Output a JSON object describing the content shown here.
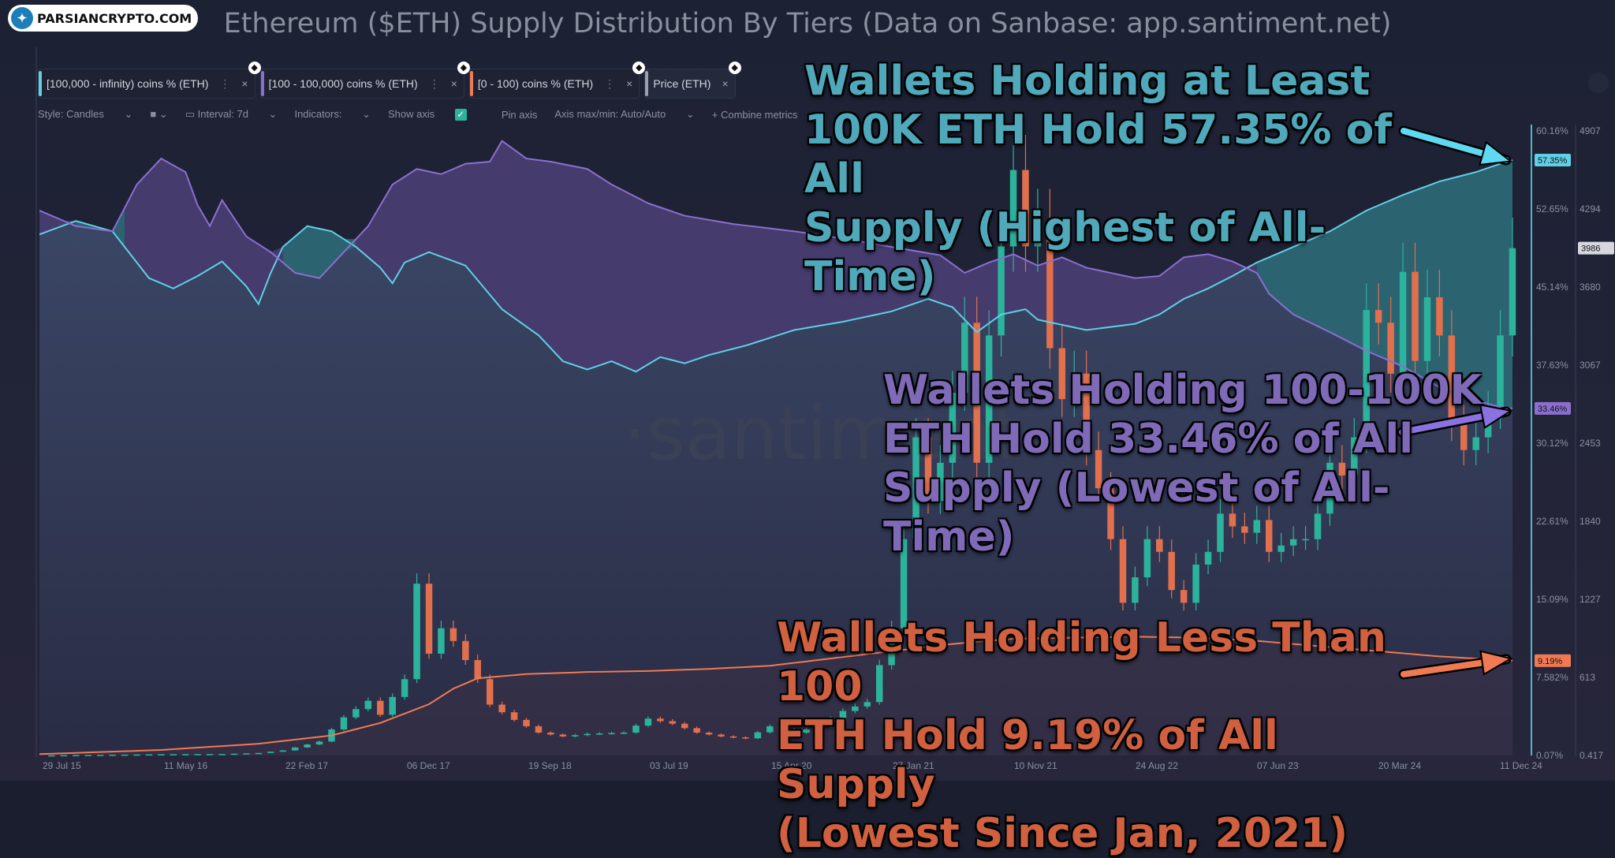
{
  "brand": {
    "logo_text": "PARSIANCRYPTO.COM",
    "logo_glyph": "✦"
  },
  "title": "Ethereum ($ETH) Supply Distribution By Tiers (Data on Sanbase: app.santiment.net)",
  "metrics": [
    {
      "label": "[100,000 - infinity) coins % (ETH)",
      "color": "#5fd0e6"
    },
    {
      "label": "[100 - 100,000) coins % (ETH)",
      "color": "#8a6fd1"
    },
    {
      "label": "[0 - 100) coins % (ETH)",
      "color": "#f07a54"
    },
    {
      "label": "Price (ETH)",
      "color": "#9aa0b2"
    }
  ],
  "metric_menu": "⋮",
  "metric_close": "×",
  "toolbar": {
    "style": "Style: Candles",
    "interval": "Interval: 7d",
    "indicators": "Indicators:",
    "show_axis": "Show axis",
    "pin_axis": "Pin axis",
    "axis_maxmin": "Axis max/min: Auto/Auto",
    "combine": "+ Combine metrics"
  },
  "watermark": "·santiment",
  "side_watermark": "santiment",
  "annotations": {
    "a1": [
      "Wallets Holding at Least",
      "100K ETH Hold 57.35% of All",
      "Supply (Highest of All-Time)"
    ],
    "a2": [
      "Wallets Holding 100-100K",
      "ETH Hold 33.46% of All",
      "Supply (Lowest of All-Time)"
    ],
    "a3": [
      "Wallets Holding Less Than 100",
      "ETH Hold 9.19% of All Supply",
      "(Lowest Since Jan, 2021)"
    ]
  },
  "chart_data": {
    "type": "line",
    "x_ticks": [
      "29 Jul 15",
      "11 May 16",
      "22 Feb 17",
      "06 Dec 17",
      "19 Sep 18",
      "03 Jul 19",
      "15 Apr 20",
      "27 Jan 21",
      "10 Nov 21",
      "24 Aug 22",
      "07 Jun 23",
      "20 Mar 24",
      "11 Dec 24"
    ],
    "y_left_ticks": [
      "60.16%",
      "52.65%",
      "45.14%",
      "37.63%",
      "30.12%",
      "22.61%",
      "15.09%",
      "7.582%",
      "0.07%"
    ],
    "y_left_range": [
      0.07,
      60.16
    ],
    "y_right_ticks": [
      "4907",
      "4294",
      "3680",
      "3067",
      "2453",
      "1840",
      "1227",
      "613",
      "0.417"
    ],
    "y_right_range": [
      0.417,
      4907
    ],
    "value_labels": [
      {
        "text": "57.35%",
        "color": "#5fd0e6"
      },
      {
        "text": "33.46%",
        "color": "#8a6fd1"
      },
      {
        "text": "9.19%",
        "color": "#f07a54"
      },
      {
        "text": "3986",
        "color": "#d6d8de"
      }
    ],
    "series": [
      {
        "name": "[100,000 - infinity) coins % (ETH)",
        "color": "#5fd0e6",
        "points": [
          [
            0,
            50.2
          ],
          [
            3,
            51.5
          ],
          [
            6,
            50.5
          ],
          [
            9,
            46.0
          ],
          [
            11,
            45.0
          ],
          [
            13,
            46.2
          ],
          [
            15,
            47.6
          ],
          [
            17,
            45.2
          ],
          [
            18,
            43.5
          ],
          [
            19,
            46.5
          ],
          [
            20,
            49.0
          ],
          [
            22,
            51.0
          ],
          [
            24,
            50.5
          ],
          [
            26,
            49.0
          ],
          [
            28,
            47.0
          ],
          [
            29,
            45.5
          ],
          [
            30,
            47.5
          ],
          [
            32,
            48.5
          ],
          [
            35,
            47.2
          ],
          [
            38,
            43.0
          ],
          [
            41,
            40.5
          ],
          [
            43,
            38.0
          ],
          [
            45,
            37.2
          ],
          [
            47,
            38.0
          ],
          [
            49,
            37.0
          ],
          [
            51,
            38.4
          ],
          [
            53,
            37.8
          ],
          [
            55,
            38.6
          ],
          [
            58,
            39.5
          ],
          [
            62,
            41.0
          ],
          [
            66,
            41.8
          ],
          [
            70,
            42.8
          ],
          [
            73,
            44.0
          ],
          [
            75,
            43.2
          ],
          [
            77,
            40.8
          ],
          [
            79,
            42.5
          ],
          [
            81,
            43.0
          ],
          [
            82,
            42.0
          ],
          [
            84,
            41.5
          ],
          [
            86,
            41.0
          ],
          [
            88,
            41.3
          ],
          [
            90,
            41.6
          ],
          [
            92,
            42.5
          ],
          [
            94,
            44.0
          ],
          [
            96,
            45.0
          ],
          [
            98,
            46.2
          ],
          [
            100,
            47.5
          ],
          [
            103,
            49.0
          ],
          [
            106,
            50.5
          ],
          [
            109,
            52.5
          ],
          [
            112,
            54.0
          ],
          [
            115,
            55.3
          ],
          [
            118,
            56.2
          ],
          [
            120,
            57.0
          ],
          [
            121,
            57.35
          ]
        ]
      },
      {
        "name": "[100 - 100,000) coins % (ETH)",
        "color": "#8a6fd1",
        "points": [
          [
            0,
            52.5
          ],
          [
            3,
            51.0
          ],
          [
            6,
            50.5
          ],
          [
            8,
            55.0
          ],
          [
            10,
            57.5
          ],
          [
            12,
            56.2
          ],
          [
            13,
            53.0
          ],
          [
            14,
            51.0
          ],
          [
            15,
            53.5
          ],
          [
            17,
            50.0
          ],
          [
            19,
            48.5
          ],
          [
            21,
            46.5
          ],
          [
            23,
            46.0
          ],
          [
            25,
            48.5
          ],
          [
            27,
            51.0
          ],
          [
            29,
            55.0
          ],
          [
            31,
            56.5
          ],
          [
            33,
            56.0
          ],
          [
            35,
            57.0
          ],
          [
            37,
            57.2
          ],
          [
            38,
            59.2
          ],
          [
            40,
            57.5
          ],
          [
            42,
            57.2
          ],
          [
            45,
            56.5
          ],
          [
            47,
            55.0
          ],
          [
            50,
            53.2
          ],
          [
            53,
            52.0
          ],
          [
            57,
            51.2
          ],
          [
            62,
            50.5
          ],
          [
            66,
            49.8
          ],
          [
            70,
            49.0
          ],
          [
            74,
            48.2
          ],
          [
            76,
            46.5
          ],
          [
            78,
            47.5
          ],
          [
            80,
            48.3
          ],
          [
            82,
            47.2
          ],
          [
            84,
            48.0
          ],
          [
            86,
            47.0
          ],
          [
            88,
            46.5
          ],
          [
            90,
            46.0
          ],
          [
            92,
            46.2
          ],
          [
            94,
            48.0
          ],
          [
            96,
            48.3
          ],
          [
            98,
            47.6
          ],
          [
            100,
            46.5
          ],
          [
            101,
            44.5
          ],
          [
            103,
            42.5
          ],
          [
            106,
            40.8
          ],
          [
            109,
            39.0
          ],
          [
            112,
            37.5
          ],
          [
            115,
            35.5
          ],
          [
            118,
            34.2
          ],
          [
            120,
            33.6
          ],
          [
            121,
            33.46
          ]
        ]
      },
      {
        "name": "[0 - 100) coins % (ETH)",
        "color": "#f07a54",
        "points": [
          [
            0,
            0.2
          ],
          [
            10,
            0.6
          ],
          [
            18,
            1.2
          ],
          [
            24,
            2.0
          ],
          [
            28,
            3.2
          ],
          [
            32,
            5.0
          ],
          [
            34,
            6.5
          ],
          [
            36,
            7.5
          ],
          [
            40,
            7.9
          ],
          [
            45,
            8.1
          ],
          [
            50,
            8.2
          ],
          [
            55,
            8.4
          ],
          [
            60,
            8.7
          ],
          [
            65,
            9.4
          ],
          [
            70,
            10.1
          ],
          [
            75,
            10.8
          ],
          [
            80,
            11.3
          ],
          [
            85,
            11.4
          ],
          [
            90,
            11.5
          ],
          [
            95,
            11.4
          ],
          [
            100,
            11.1
          ],
          [
            105,
            10.6
          ],
          [
            110,
            10.1
          ],
          [
            115,
            9.6
          ],
          [
            121,
            9.19
          ]
        ]
      },
      {
        "name": "Price (ETH)",
        "color": "#2cb39c",
        "points": [
          [
            0,
            1
          ],
          [
            10,
            10
          ],
          [
            15,
            12
          ],
          [
            18,
            20
          ],
          [
            20,
            40
          ],
          [
            23,
            110
          ],
          [
            25,
            300
          ],
          [
            27,
            430
          ],
          [
            28,
            320
          ],
          [
            30,
            600
          ],
          [
            31,
            1350
          ],
          [
            32,
            800
          ],
          [
            33,
            1000
          ],
          [
            34,
            900
          ],
          [
            36,
            600
          ],
          [
            37,
            400
          ],
          [
            39,
            280
          ],
          [
            41,
            180
          ],
          [
            43,
            150
          ],
          [
            45,
            170
          ],
          [
            48,
            180
          ],
          [
            50,
            290
          ],
          [
            52,
            250
          ],
          [
            54,
            180
          ],
          [
            56,
            150
          ],
          [
            58,
            135
          ],
          [
            60,
            230
          ],
          [
            62,
            180
          ],
          [
            64,
            230
          ],
          [
            66,
            350
          ],
          [
            68,
            420
          ],
          [
            70,
            1000
          ],
          [
            71,
            1700
          ],
          [
            72,
            2500
          ],
          [
            73,
            2000
          ],
          [
            74,
            2300
          ],
          [
            76,
            3400
          ],
          [
            77,
            2300
          ],
          [
            78,
            3300
          ],
          [
            79,
            4000
          ],
          [
            80,
            4600
          ],
          [
            81,
            4000
          ],
          [
            82,
            4200
          ],
          [
            83,
            3200
          ],
          [
            84,
            2800
          ],
          [
            85,
            3000
          ],
          [
            86,
            2400
          ],
          [
            87,
            2100
          ],
          [
            88,
            1700
          ],
          [
            89,
            1200
          ],
          [
            90,
            1400
          ],
          [
            91,
            1700
          ],
          [
            92,
            1600
          ],
          [
            93,
            1300
          ],
          [
            94,
            1200
          ],
          [
            95,
            1500
          ],
          [
            96,
            1600
          ],
          [
            97,
            1900
          ],
          [
            98,
            1800
          ],
          [
            99,
            1750
          ],
          [
            100,
            1850
          ],
          [
            101,
            1600
          ],
          [
            102,
            1650
          ],
          [
            103,
            1700
          ],
          [
            104,
            1700
          ],
          [
            105,
            1900
          ],
          [
            106,
            2300
          ],
          [
            107,
            2200
          ],
          [
            108,
            2500
          ],
          [
            109,
            3500
          ],
          [
            110,
            3400
          ],
          [
            111,
            3000
          ],
          [
            112,
            3800
          ],
          [
            113,
            3100
          ],
          [
            114,
            3600
          ],
          [
            115,
            3300
          ],
          [
            116,
            2600
          ],
          [
            117,
            2400
          ],
          [
            118,
            2500
          ],
          [
            119,
            2700
          ],
          [
            120,
            3300
          ],
          [
            121,
            3986
          ]
        ]
      }
    ]
  }
}
